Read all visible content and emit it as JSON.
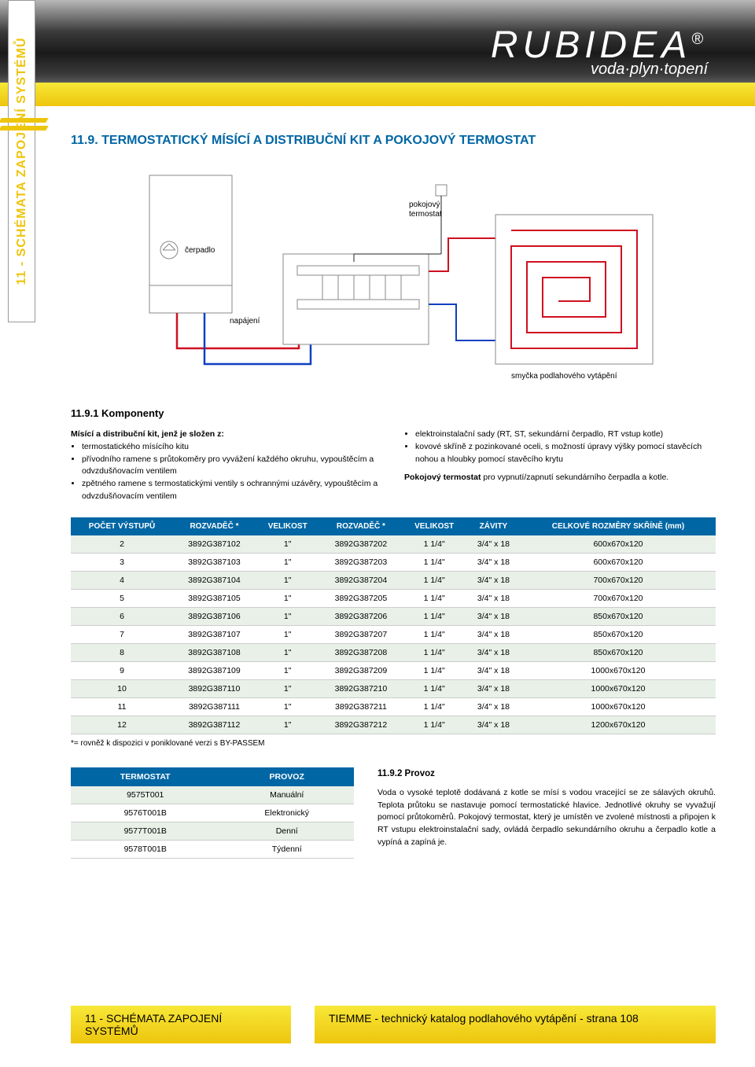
{
  "side_label": "11 - SCHÉMATA ZAPOJENÍ SYSTÉMŮ",
  "logo": {
    "name": "RUBIDEA",
    "reg": "®",
    "tagline": "voda·plyn·topení"
  },
  "section_title": "11.9. TERMOSTATICKÝ MÍSÍCÍ A DISTRIBUČNÍ KIT A POKOJOVÝ TERMOSTAT",
  "diagram": {
    "pump_label": "čerpadlo",
    "supply_label": "napájení",
    "thermostat_label": "pokojový\ntermostat",
    "loop_label": "smyčka podlahového vytápění",
    "colors": {
      "supply": "#d01020",
      "return": "#1040c0",
      "control": "#222222",
      "box": "#888888",
      "loop": "#d01020"
    }
  },
  "components": {
    "heading": "11.9.1 Komponenty",
    "intro": "Mísící a distribuční kit, jenž je složen z:",
    "left_bullets": [
      "termostatického mísícího kitu",
      "přívodního ramene s průtokoměry pro vyvážení každého okruhu, vypouštěcím a odvzdušňovacím ventilem",
      "zpětného ramene s termostatickými ventily s ochrannými uzávěry, vypouštěcím a odvzdušňovacím ventilem"
    ],
    "right_bullets": [
      "elektroinstalační sady (RT, ST, sekundární čerpadlo, RT vstup kotle)",
      "kovové skříně z pozinkované oceli, s možností úpravy výšky pomocí stavěcích nohou a hloubky pomocí stavěcího krytu"
    ],
    "right_note": "Pokojový termostat pro vypnutí/zapnutí sekundárního čerpadla a kotle."
  },
  "main_table": {
    "header_bg": "#0066a4",
    "row_even_bg": "#e8f0e8",
    "columns": [
      "POČET VÝSTUPŮ",
      "ROZVADĚČ *",
      "VELIKOST",
      "ROZVADĚČ *",
      "VELIKOST",
      "ZÁVITY",
      "CELKOVÉ ROZMĚRY SKŘÍNĚ (mm)"
    ],
    "rows": [
      [
        "2",
        "3892G387102",
        "1\"",
        "3892G387202",
        "1 1/4\"",
        "3/4\" x 18",
        "600x670x120"
      ],
      [
        "3",
        "3892G387103",
        "1\"",
        "3892G387203",
        "1 1/4\"",
        "3/4\" x 18",
        "600x670x120"
      ],
      [
        "4",
        "3892G387104",
        "1\"",
        "3892G387204",
        "1 1/4\"",
        "3/4\" x 18",
        "700x670x120"
      ],
      [
        "5",
        "3892G387105",
        "1\"",
        "3892G387205",
        "1 1/4\"",
        "3/4\" x 18",
        "700x670x120"
      ],
      [
        "6",
        "3892G387106",
        "1\"",
        "3892G387206",
        "1 1/4\"",
        "3/4\" x 18",
        "850x670x120"
      ],
      [
        "7",
        "3892G387107",
        "1\"",
        "3892G387207",
        "1 1/4\"",
        "3/4\" x 18",
        "850x670x120"
      ],
      [
        "8",
        "3892G387108",
        "1\"",
        "3892G387208",
        "1 1/4\"",
        "3/4\" x 18",
        "850x670x120"
      ],
      [
        "9",
        "3892G387109",
        "1\"",
        "3892G387209",
        "1 1/4\"",
        "3/4\" x 18",
        "1000x670x120"
      ],
      [
        "10",
        "3892G387110",
        "1\"",
        "3892G387210",
        "1 1/4\"",
        "3/4\" x 18",
        "1000x670x120"
      ],
      [
        "11",
        "3892G387111",
        "1\"",
        "3892G387211",
        "1 1/4\"",
        "3/4\" x 18",
        "1000x670x120"
      ],
      [
        "12",
        "3892G387112",
        "1\"",
        "3892G387212",
        "1 1/4\"",
        "3/4\" x 18",
        "1200x670x120"
      ]
    ],
    "note": "*= rovněž k dispozici v poniklované verzi s BY-PASSEM"
  },
  "thermo_table": {
    "columns": [
      "TERMOSTAT",
      "PROVOZ"
    ],
    "rows": [
      [
        "9575T001",
        "Manuální"
      ],
      [
        "9576T001B",
        "Elektronický"
      ],
      [
        "9577T001B",
        "Denní"
      ],
      [
        "9578T001B",
        "Týdenní"
      ]
    ]
  },
  "provoz": {
    "heading": "11.9.2 Provoz",
    "text": "Voda o vysoké teplotě dodávaná z kotle se mísí s vodou vracející se ze sálavých okruhů. Teplota průtoku se nastavuje pomocí termostatické hlavice. Jednotlivé okruhy se vyvažují pomocí průtokoměrů. Pokojový termostat, který je umístěn ve zvolené místnosti a připojen k RT vstupu elektroinstalační sady, ovládá čerpadlo sekundárního okruhu a čerpadlo kotle a vypíná a zapíná je."
  },
  "footer": {
    "left": "11 - SCHÉMATA ZAPOJENÍ SYSTÉMŮ",
    "right": "TIEMME - technický katalog podlahového vytápění - strana 108"
  }
}
